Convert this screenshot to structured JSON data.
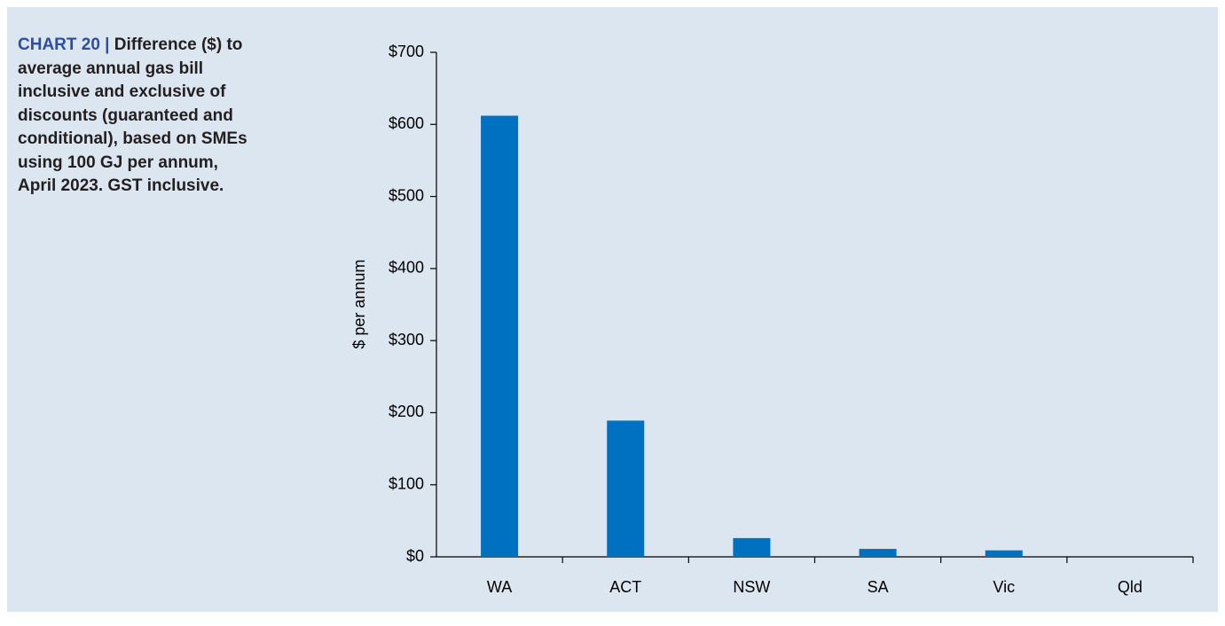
{
  "chart_data": {
    "type": "bar",
    "label": "CHART 20 |",
    "title": "Difference ($) to average annual gas bill inclusive and exclusive of discounts (guaranteed and conditional), based on SMEs using 100 GJ per annum, April 2023. GST inclusive.",
    "y_label": "$ per annum",
    "categories": [
      "WA",
      "ACT",
      "NSW",
      "SA",
      "Vic",
      "Qld"
    ],
    "values": [
      612,
      189,
      26,
      11,
      9,
      0
    ],
    "color": "#0070c0",
    "ylim": [
      0,
      700
    ],
    "yticks": [
      {
        "value": 0,
        "label": "$0"
      },
      {
        "value": 100,
        "label": "$100"
      },
      {
        "value": 200,
        "label": "$200"
      },
      {
        "value": 300,
        "label": "$300"
      },
      {
        "value": 400,
        "label": "$400"
      },
      {
        "value": 500,
        "label": "$500"
      },
      {
        "value": 600,
        "label": "$600"
      },
      {
        "value": 700,
        "label": "$700"
      }
    ],
    "grid": false
  }
}
